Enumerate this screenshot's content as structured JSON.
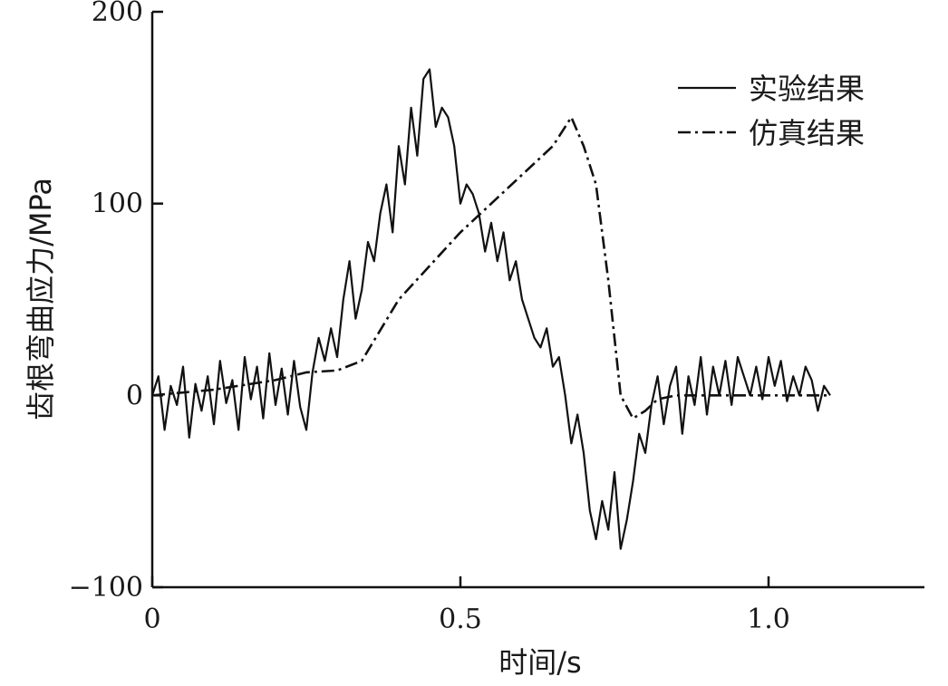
{
  "chart_data": {
    "type": "line",
    "title": "",
    "xlabel": "时间/s",
    "ylabel": "齿根弯曲应力/MPa",
    "xlim": [
      0,
      1.25
    ],
    "ylim": [
      -100,
      200
    ],
    "x_ticks": [
      0,
      0.5,
      1.0
    ],
    "x_tick_labels": [
      "0",
      "0.5",
      "1.0"
    ],
    "y_ticks": [
      -100,
      0,
      100,
      200
    ],
    "y_tick_labels": [
      "−100",
      "0",
      "100",
      "200"
    ],
    "grid": false,
    "legend_position": "top-right",
    "series": [
      {
        "name": "实验结果",
        "style": "solid",
        "x": [
          0.0,
          0.01,
          0.02,
          0.03,
          0.04,
          0.05,
          0.06,
          0.07,
          0.08,
          0.09,
          0.1,
          0.11,
          0.12,
          0.13,
          0.14,
          0.15,
          0.16,
          0.17,
          0.18,
          0.19,
          0.2,
          0.21,
          0.22,
          0.23,
          0.24,
          0.25,
          0.26,
          0.27,
          0.28,
          0.29,
          0.3,
          0.31,
          0.32,
          0.33,
          0.34,
          0.35,
          0.36,
          0.37,
          0.38,
          0.39,
          0.4,
          0.41,
          0.42,
          0.43,
          0.44,
          0.45,
          0.46,
          0.47,
          0.48,
          0.49,
          0.5,
          0.51,
          0.52,
          0.53,
          0.54,
          0.55,
          0.56,
          0.57,
          0.58,
          0.59,
          0.6,
          0.61,
          0.62,
          0.63,
          0.64,
          0.65,
          0.66,
          0.67,
          0.68,
          0.69,
          0.7,
          0.71,
          0.72,
          0.73,
          0.74,
          0.75,
          0.76,
          0.77,
          0.78,
          0.79,
          0.8,
          0.81,
          0.82,
          0.83,
          0.84,
          0.85,
          0.86,
          0.87,
          0.88,
          0.89,
          0.9,
          0.91,
          0.92,
          0.93,
          0.94,
          0.95,
          0.96,
          0.97,
          0.98,
          0.99,
          1.0,
          1.01,
          1.02,
          1.03,
          1.04,
          1.05,
          1.06,
          1.07,
          1.08,
          1.09,
          1.1
        ],
        "y": [
          0,
          10,
          -18,
          5,
          -5,
          15,
          -22,
          6,
          -8,
          10,
          -15,
          18,
          -4,
          8,
          -18,
          20,
          -2,
          15,
          -12,
          22,
          -5,
          14,
          -10,
          18,
          -6,
          -18,
          12,
          30,
          18,
          35,
          20,
          50,
          70,
          40,
          55,
          80,
          70,
          95,
          110,
          85,
          130,
          110,
          150,
          125,
          165,
          170,
          140,
          150,
          145,
          130,
          100,
          110,
          105,
          95,
          75,
          90,
          70,
          85,
          60,
          70,
          50,
          40,
          30,
          25,
          35,
          15,
          20,
          0,
          -25,
          -10,
          -30,
          -60,
          -75,
          -55,
          -70,
          -40,
          -80,
          -65,
          -45,
          -20,
          -30,
          -5,
          10,
          -15,
          5,
          15,
          -20,
          10,
          -5,
          20,
          -10,
          15,
          0,
          18,
          -5,
          20,
          10,
          0,
          15,
          -2,
          20,
          5,
          18,
          -3,
          10,
          0,
          15,
          8,
          -8,
          5,
          0
        ],
        "stroke": "#111111"
      },
      {
        "name": "仿真结果",
        "style": "dash-dot",
        "x": [
          0.0,
          0.1,
          0.2,
          0.25,
          0.3,
          0.34,
          0.4,
          0.5,
          0.55,
          0.6,
          0.65,
          0.68,
          0.7,
          0.72,
          0.74,
          0.76,
          0.78,
          0.8,
          0.82,
          0.85,
          0.9,
          1.0,
          1.1
        ],
        "y": [
          0,
          3,
          8,
          12,
          13,
          18,
          50,
          85,
          100,
          115,
          130,
          145,
          130,
          110,
          60,
          0,
          -12,
          -8,
          -2,
          0,
          0,
          0,
          0
        ],
        "stroke": "#111111"
      }
    ]
  }
}
